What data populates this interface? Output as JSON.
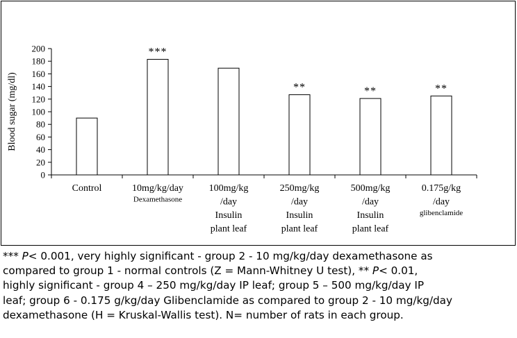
{
  "chart_data": {
    "type": "bar",
    "title": "",
    "xlabel": "",
    "ylabel": "Blood sugar (mg/dl)",
    "ylim": [
      0,
      200
    ],
    "yticks": [
      "0",
      "20",
      "40",
      "60",
      "80",
      "100",
      "120",
      "140",
      "160",
      "180",
      "200"
    ],
    "grid": false,
    "categories": [
      [
        "Control"
      ],
      [
        "10mg/kg/day",
        "Dexamethasone"
      ],
      [
        "100mg/kg",
        "/day",
        "Insulin",
        "plant leaf"
      ],
      [
        "250mg/kg",
        "/day",
        "Insulin",
        "plant leaf"
      ],
      [
        "500mg/kg",
        "/day",
        "Insulin",
        "plant leaf"
      ],
      [
        "0.175g/kg",
        "/day",
        "glibenclamide"
      ]
    ],
    "values": [
      90,
      183,
      169,
      127,
      121,
      125
    ],
    "significance": [
      "",
      "***",
      "",
      "**",
      "**",
      "**"
    ]
  },
  "caption": {
    "lines": [
      [
        {
          "t": "*** "
        },
        {
          "t": "P",
          "i": true
        },
        {
          "t": "< 0.001, very highly significant - group 2 - 10 mg/kg/day dexamethasone as"
        }
      ],
      [
        {
          "t": "compared to group 1 - normal controls (Z = Mann-Whitney U test), ** "
        },
        {
          "t": "P",
          "i": true
        },
        {
          "t": "< 0.01,"
        }
      ],
      [
        {
          "t": "highly significant - group 4 – 250 mg/kg/day IP leaf; group 5 – 500 mg/kg/day IP"
        }
      ],
      [
        {
          "t": "leaf; group 6 - 0.175 g/kg/day Glibenclamide as compared to group 2 - 10 mg/kg/day"
        }
      ],
      [
        {
          "t": "dexamethasone (H = Kruskal-Wallis test). N= number of rats in each group."
        }
      ]
    ]
  }
}
